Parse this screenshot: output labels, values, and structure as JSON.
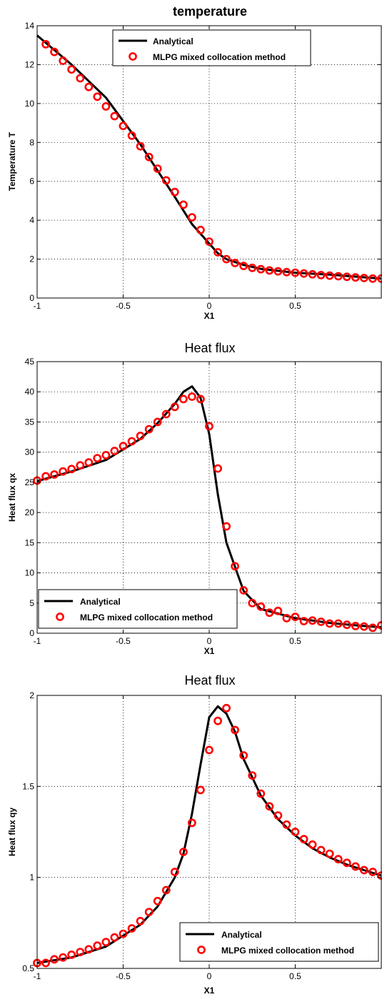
{
  "chart_data": [
    {
      "type": "line",
      "title": "temperature",
      "xlabel": "X1",
      "ylabel": "Temperature T",
      "xlim": [
        -1,
        1
      ],
      "ylim": [
        0,
        14
      ],
      "xticks": [
        -1,
        -0.5,
        0,
        0.5,
        1
      ],
      "yticks": [
        0,
        2,
        4,
        6,
        8,
        10,
        12,
        14
      ],
      "xtick_labels": [
        "-1",
        "-0.5",
        "0",
        "0.5",
        ""
      ],
      "ytick_labels": [
        "0",
        "2",
        "4",
        "6",
        "8",
        "10",
        "12",
        "14"
      ],
      "grid": true,
      "legend_position": "top-center",
      "series": [
        {
          "name": "Analytical",
          "style": "line",
          "color": "#000000",
          "x": [
            -1,
            -0.8,
            -0.6,
            -0.4,
            -0.2,
            -0.1,
            0,
            0.05,
            0.1,
            0.2,
            0.3,
            0.5,
            0.7,
            1
          ],
          "y": [
            13.5,
            12,
            10.3,
            7.9,
            5.2,
            3.8,
            2.8,
            2.3,
            2.0,
            1.7,
            1.5,
            1.3,
            1.2,
            1.0
          ]
        },
        {
          "name": "MLPG mixed collocation method",
          "style": "marker",
          "color": "#ff0000",
          "x": [
            -0.95,
            -0.9,
            -0.85,
            -0.8,
            -0.75,
            -0.7,
            -0.65,
            -0.6,
            -0.55,
            -0.5,
            -0.45,
            -0.4,
            -0.35,
            -0.3,
            -0.25,
            -0.2,
            -0.15,
            -0.1,
            -0.05,
            0,
            0.05,
            0.1,
            0.15,
            0.2,
            0.25,
            0.3,
            0.35,
            0.4,
            0.45,
            0.5,
            0.55,
            0.6,
            0.65,
            0.7,
            0.75,
            0.8,
            0.85,
            0.9,
            0.95,
            1
          ],
          "y": [
            13.05,
            12.65,
            12.2,
            11.75,
            11.3,
            10.85,
            10.35,
            9.85,
            9.35,
            8.85,
            8.35,
            7.8,
            7.25,
            6.65,
            6.05,
            5.45,
            4.8,
            4.15,
            3.5,
            2.9,
            2.35,
            2.0,
            1.8,
            1.65,
            1.55,
            1.48,
            1.42,
            1.37,
            1.33,
            1.3,
            1.26,
            1.22,
            1.18,
            1.15,
            1.12,
            1.09,
            1.06,
            1.03,
            1.0,
            1.0
          ]
        }
      ]
    },
    {
      "type": "line",
      "title": "Heat flux",
      "xlabel": "X1",
      "ylabel": "Heat flux qx",
      "xlim": [
        -1,
        1
      ],
      "ylim": [
        0,
        45
      ],
      "xticks": [
        -1,
        -0.5,
        0,
        0.5,
        1
      ],
      "yticks": [
        0,
        5,
        10,
        15,
        20,
        25,
        30,
        35,
        40,
        45
      ],
      "xtick_labels": [
        "-1",
        "-0.5",
        "0",
        "0.5",
        ""
      ],
      "ytick_labels": [
        "0",
        "5",
        "10",
        "15",
        "20",
        "25",
        "30",
        "35",
        "40",
        "45"
      ],
      "grid": true,
      "legend_position": "bottom-left",
      "series": [
        {
          "name": "Analytical",
          "style": "line",
          "color": "#000000",
          "x": [
            -1,
            -0.8,
            -0.6,
            -0.4,
            -0.3,
            -0.2,
            -0.15,
            -0.1,
            -0.05,
            0,
            0.05,
            0.1,
            0.2,
            0.3,
            0.5,
            0.7,
            0.9,
            1
          ],
          "y": [
            25.2,
            26.8,
            28.7,
            32.2,
            34.8,
            38.0,
            40.0,
            40.9,
            39.0,
            33.0,
            23.0,
            15.0,
            7.0,
            4.0,
            2.5,
            1.7,
            1.2,
            1.0
          ]
        },
        {
          "name": "MLPG mixed collocation method",
          "style": "marker",
          "color": "#ff0000",
          "x": [
            -1,
            -0.95,
            -0.9,
            -0.85,
            -0.8,
            -0.75,
            -0.7,
            -0.65,
            -0.6,
            -0.55,
            -0.5,
            -0.45,
            -0.4,
            -0.35,
            -0.3,
            -0.25,
            -0.2,
            -0.15,
            -0.1,
            -0.05,
            0,
            0.05,
            0.1,
            0.15,
            0.2,
            0.25,
            0.3,
            0.35,
            0.4,
            0.45,
            0.5,
            0.55,
            0.6,
            0.65,
            0.7,
            0.75,
            0.8,
            0.85,
            0.9,
            0.95,
            1
          ],
          "y": [
            25.3,
            26.0,
            26.3,
            26.8,
            27.2,
            27.8,
            28.3,
            29.0,
            29.5,
            30.2,
            31.0,
            31.8,
            32.7,
            33.8,
            35.0,
            36.3,
            37.5,
            38.8,
            39.2,
            38.8,
            34.3,
            27.3,
            17.7,
            11.1,
            7.1,
            5.0,
            4.4,
            3.4,
            3.7,
            2.5,
            2.7,
            2.0,
            2.1,
            1.9,
            1.6,
            1.6,
            1.4,
            1.2,
            1.1,
            0.9,
            1.3
          ]
        }
      ]
    },
    {
      "type": "line",
      "title": "Heat flux",
      "xlabel": "X1",
      "ylabel": "Heat flux qy",
      "xlim": [
        -1,
        1
      ],
      "ylim": [
        0.5,
        2
      ],
      "xticks": [
        -1,
        -0.5,
        0,
        0.5,
        1
      ],
      "yticks": [
        0.5,
        1,
        1.5,
        2
      ],
      "xtick_labels": [
        "-1",
        "-0.5",
        "0",
        "0.5",
        ""
      ],
      "ytick_labels": [
        "0.5",
        "1",
        "1.5",
        "2"
      ],
      "grid": true,
      "legend_position": "bottom-right",
      "series": [
        {
          "name": "Analytical",
          "style": "line",
          "color": "#000000",
          "x": [
            -1,
            -0.8,
            -0.6,
            -0.4,
            -0.3,
            -0.2,
            -0.15,
            -0.1,
            -0.05,
            0,
            0.05,
            0.1,
            0.15,
            0.2,
            0.3,
            0.4,
            0.5,
            0.6,
            0.7,
            0.8,
            0.9,
            1
          ],
          "y": [
            0.53,
            0.56,
            0.62,
            0.74,
            0.84,
            1.0,
            1.13,
            1.35,
            1.62,
            1.88,
            1.94,
            1.9,
            1.8,
            1.65,
            1.45,
            1.32,
            1.23,
            1.16,
            1.11,
            1.07,
            1.04,
            1.01
          ]
        },
        {
          "name": "MLPG mixed collocation method",
          "style": "marker",
          "color": "#ff0000",
          "x": [
            -1,
            -0.95,
            -0.9,
            -0.85,
            -0.8,
            -0.75,
            -0.7,
            -0.65,
            -0.6,
            -0.55,
            -0.5,
            -0.45,
            -0.4,
            -0.35,
            -0.3,
            -0.25,
            -0.2,
            -0.15,
            -0.1,
            -0.05,
            0,
            0.05,
            0.1,
            0.15,
            0.2,
            0.25,
            0.3,
            0.35,
            0.4,
            0.45,
            0.5,
            0.55,
            0.6,
            0.65,
            0.7,
            0.75,
            0.8,
            0.85,
            0.9,
            0.95,
            1
          ],
          "y": [
            0.53,
            0.53,
            0.55,
            0.56,
            0.575,
            0.59,
            0.605,
            0.625,
            0.645,
            0.67,
            0.69,
            0.72,
            0.76,
            0.81,
            0.87,
            0.93,
            1.03,
            1.14,
            1.3,
            1.48,
            1.7,
            1.86,
            1.93,
            1.81,
            1.67,
            1.56,
            1.46,
            1.39,
            1.34,
            1.29,
            1.25,
            1.21,
            1.18,
            1.15,
            1.13,
            1.1,
            1.08,
            1.06,
            1.04,
            1.03,
            1.01
          ]
        }
      ]
    }
  ]
}
